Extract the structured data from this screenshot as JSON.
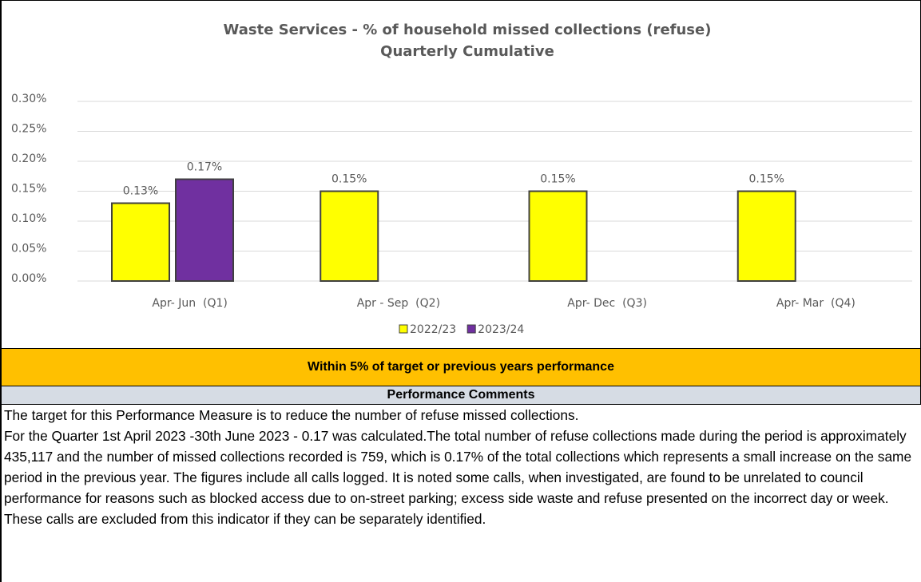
{
  "chart_data": {
    "type": "bar",
    "title": "Waste Services - % of household missed collections (refuse)",
    "subtitle": "Quarterly Cumulative",
    "categories": [
      "Apr- Jun  (Q1)",
      "Apr - Sep  (Q2)",
      "Apr- Dec  (Q3)",
      "Apr- Mar  (Q4)"
    ],
    "series": [
      {
        "name": "2022/23",
        "color": "#ffff00",
        "values": [
          0.13,
          0.15,
          0.15,
          0.15
        ],
        "value_labels": [
          "0.13%",
          "0.15%",
          "0.15%",
          "0.15%"
        ]
      },
      {
        "name": "2023/24",
        "color": "#7030a0",
        "values": [
          0.17,
          null,
          null,
          null
        ],
        "value_labels": [
          "0.17%",
          null,
          null,
          null
        ]
      }
    ],
    "ylim": [
      0,
      0.3
    ],
    "yticks": [
      {
        "value": 0,
        "label": "0.00%"
      },
      {
        "value": 0.05,
        "label": "0.05%"
      },
      {
        "value": 0.1,
        "label": "0.10%"
      },
      {
        "value": 0.15,
        "label": "0.15%"
      },
      {
        "value": 0.2,
        "label": "0.20%"
      },
      {
        "value": 0.25,
        "label": "0.25%"
      },
      {
        "value": 0.3,
        "label": "0.30%"
      }
    ],
    "grid": true,
    "legend": "bottom"
  },
  "status": "Within 5% of target or previous years performance",
  "comments": {
    "heading": "Performance Comments",
    "paragraphs": [
      "The target for this Performance Measure is to reduce the number of refuse missed collections.",
      "For the Quarter 1st April 2023 -30th June 2023 - 0.17 was calculated.The total number of refuse collections made during the period is approximately 435,117 and the number of missed collections recorded is 759, which is 0.17% of the total collections which represents a small increase on the same period in the previous year. The figures include all calls logged. It is noted some calls, when investigated, are found to be unrelated to council performance for reasons such as blocked access due to on-street parking; excess side waste and refuse presented on the incorrect day or week. These calls are excluded from this indicator if they can be separately identified."
    ]
  }
}
